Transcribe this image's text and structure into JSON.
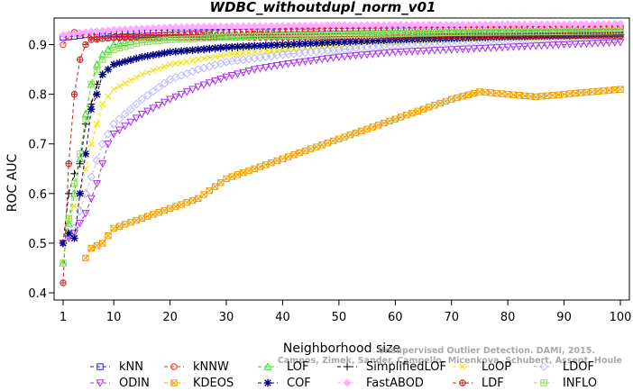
{
  "chart_data": {
    "type": "line",
    "title": "WDBC_withoutdupl_norm_v01",
    "xlabel": "Neighborhood size",
    "ylabel": "ROC AUC",
    "xlim": [
      1,
      100
    ],
    "ylim": [
      0.4,
      0.95
    ],
    "xticks": [
      1,
      10,
      20,
      30,
      40,
      50,
      60,
      70,
      80,
      90,
      100
    ],
    "yticks": [
      0.4,
      0.5,
      0.6,
      0.7,
      0.8,
      0.9
    ],
    "grid": false,
    "legend_position": "bottom",
    "watermark": [
      "Campos, Zimek, Sander, Campello, Micenkova, Schubert, Assent, Houle",
      "Unsupervised Outlier Detection. DAMI, 2015."
    ],
    "series": [
      {
        "name": "kNN",
        "color": "#1a1aff",
        "marker": "square",
        "points": [
          [
            1,
            0.915
          ],
          [
            3,
            0.917
          ],
          [
            5,
            0.92
          ],
          [
            10,
            0.922
          ],
          [
            20,
            0.924
          ],
          [
            30,
            0.925
          ],
          [
            40,
            0.926
          ],
          [
            50,
            0.927
          ],
          [
            60,
            0.928
          ],
          [
            70,
            0.929
          ],
          [
            80,
            0.93
          ],
          [
            90,
            0.931
          ],
          [
            100,
            0.932
          ]
        ]
      },
      {
        "name": "kNNW",
        "color": "#ff2020",
        "marker": "circle",
        "points": [
          [
            1,
            0.9
          ],
          [
            2,
            0.915
          ],
          [
            3,
            0.925
          ],
          [
            5,
            0.92
          ],
          [
            8,
            0.912
          ],
          [
            10,
            0.915
          ],
          [
            20,
            0.92
          ],
          [
            30,
            0.925
          ],
          [
            40,
            0.93
          ],
          [
            50,
            0.932
          ],
          [
            60,
            0.933
          ],
          [
            70,
            0.934
          ],
          [
            80,
            0.935
          ],
          [
            90,
            0.935
          ],
          [
            100,
            0.936
          ]
        ]
      },
      {
        "name": "LOF",
        "color": "#22dd22",
        "marker": "triangle-up",
        "points": [
          [
            1,
            0.46
          ],
          [
            2,
            0.54
          ],
          [
            3,
            0.6
          ],
          [
            4,
            0.67
          ],
          [
            5,
            0.76
          ],
          [
            6,
            0.82
          ],
          [
            7,
            0.86
          ],
          [
            8,
            0.88
          ],
          [
            10,
            0.9
          ],
          [
            15,
            0.91
          ],
          [
            20,
            0.915
          ],
          [
            30,
            0.918
          ],
          [
            40,
            0.92
          ],
          [
            50,
            0.922
          ],
          [
            60,
            0.924
          ],
          [
            70,
            0.926
          ],
          [
            80,
            0.927
          ],
          [
            90,
            0.928
          ],
          [
            100,
            0.93
          ]
        ]
      },
      {
        "name": "SimplifiedLOF",
        "color": "#000000",
        "marker": "plus",
        "points": [
          [
            1,
            0.5
          ],
          [
            2,
            0.6
          ],
          [
            3,
            0.64
          ],
          [
            4,
            0.66
          ],
          [
            5,
            0.74
          ],
          [
            6,
            0.78
          ],
          [
            7,
            0.82
          ],
          [
            8,
            0.84
          ],
          [
            10,
            0.86
          ],
          [
            15,
            0.875
          ],
          [
            20,
            0.885
          ],
          [
            30,
            0.893
          ],
          [
            40,
            0.9
          ],
          [
            50,
            0.905
          ],
          [
            60,
            0.91
          ],
          [
            70,
            0.913
          ],
          [
            80,
            0.916
          ],
          [
            90,
            0.918
          ],
          [
            100,
            0.92
          ]
        ]
      },
      {
        "name": "LoOP",
        "color": "#f0e000",
        "marker": "x",
        "points": [
          [
            1,
            0.5
          ],
          [
            2,
            0.55
          ],
          [
            4,
            0.6
          ],
          [
            6,
            0.7
          ],
          [
            8,
            0.78
          ],
          [
            10,
            0.81
          ],
          [
            15,
            0.84
          ],
          [
            20,
            0.86
          ],
          [
            30,
            0.88
          ],
          [
            40,
            0.89
          ],
          [
            50,
            0.9
          ],
          [
            60,
            0.905
          ],
          [
            70,
            0.91
          ],
          [
            80,
            0.912
          ],
          [
            90,
            0.915
          ],
          [
            100,
            0.918
          ]
        ]
      },
      {
        "name": "LDOF",
        "color": "#b8b8ff",
        "marker": "diamond",
        "points": [
          [
            1,
            0.5
          ],
          [
            3,
            0.53
          ],
          [
            5,
            0.6
          ],
          [
            8,
            0.7
          ],
          [
            10,
            0.74
          ],
          [
            15,
            0.79
          ],
          [
            20,
            0.83
          ],
          [
            25,
            0.85
          ],
          [
            30,
            0.865
          ],
          [
            40,
            0.88
          ],
          [
            50,
            0.89
          ],
          [
            60,
            0.9
          ],
          [
            70,
            0.905
          ],
          [
            80,
            0.91
          ],
          [
            90,
            0.913
          ],
          [
            100,
            0.915
          ]
        ]
      },
      {
        "name": "ODIN",
        "color": "#aa33ee",
        "marker": "triangle-down",
        "points": [
          [
            1,
            0.5
          ],
          [
            3,
            0.52
          ],
          [
            5,
            0.56
          ],
          [
            7,
            0.62
          ],
          [
            9,
            0.7
          ],
          [
            10,
            0.72
          ],
          [
            15,
            0.76
          ],
          [
            20,
            0.79
          ],
          [
            25,
            0.815
          ],
          [
            30,
            0.835
          ],
          [
            35,
            0.85
          ],
          [
            40,
            0.86
          ],
          [
            50,
            0.875
          ],
          [
            60,
            0.885
          ],
          [
            70,
            0.89
          ],
          [
            80,
            0.895
          ],
          [
            90,
            0.9
          ],
          [
            100,
            0.905
          ]
        ]
      },
      {
        "name": "KDEOS",
        "color": "#f0a000",
        "marker": "square-x",
        "points": [
          [
            5,
            0.47
          ],
          [
            6,
            0.49
          ],
          [
            8,
            0.5
          ],
          [
            10,
            0.53
          ],
          [
            15,
            0.55
          ],
          [
            20,
            0.57
          ],
          [
            25,
            0.59
          ],
          [
            30,
            0.63
          ],
          [
            35,
            0.65
          ],
          [
            40,
            0.67
          ],
          [
            45,
            0.69
          ],
          [
            50,
            0.71
          ],
          [
            55,
            0.73
          ],
          [
            60,
            0.75
          ],
          [
            65,
            0.77
          ],
          [
            70,
            0.79
          ],
          [
            75,
            0.805
          ],
          [
            80,
            0.8
          ],
          [
            85,
            0.795
          ],
          [
            90,
            0.8
          ],
          [
            95,
            0.805
          ],
          [
            100,
            0.81
          ]
        ]
      },
      {
        "name": "COF",
        "color": "#000080",
        "marker": "asterisk",
        "points": [
          [
            1,
            0.5
          ],
          [
            2,
            0.52
          ],
          [
            3,
            0.51
          ],
          [
            4,
            0.6
          ],
          [
            5,
            0.68
          ],
          [
            6,
            0.77
          ],
          [
            7,
            0.8
          ],
          [
            8,
            0.84
          ],
          [
            9,
            0.85
          ],
          [
            10,
            0.86
          ],
          [
            15,
            0.875
          ],
          [
            20,
            0.885
          ],
          [
            30,
            0.895
          ],
          [
            40,
            0.9
          ],
          [
            50,
            0.905
          ],
          [
            60,
            0.91
          ],
          [
            70,
            0.913
          ],
          [
            80,
            0.916
          ],
          [
            90,
            0.918
          ],
          [
            100,
            0.92
          ]
        ]
      },
      {
        "name": "FastABOD",
        "color": "#ffaaff",
        "marker": "diamond-filled",
        "points": [
          [
            1,
            0.92
          ],
          [
            5,
            0.925
          ],
          [
            10,
            0.93
          ],
          [
            20,
            0.935
          ],
          [
            30,
            0.937
          ],
          [
            40,
            0.938
          ],
          [
            50,
            0.939
          ],
          [
            60,
            0.94
          ],
          [
            70,
            0.94
          ],
          [
            80,
            0.941
          ],
          [
            90,
            0.941
          ],
          [
            100,
            0.942
          ]
        ]
      },
      {
        "name": "LDF",
        "color": "#bb2222",
        "marker": "circle-plus",
        "points": [
          [
            1,
            0.42
          ],
          [
            2,
            0.66
          ],
          [
            3,
            0.8
          ],
          [
            4,
            0.87
          ],
          [
            5,
            0.9
          ],
          [
            6,
            0.91
          ],
          [
            8,
            0.912
          ],
          [
            10,
            0.914
          ],
          [
            20,
            0.915
          ],
          [
            30,
            0.915
          ],
          [
            40,
            0.915
          ],
          [
            50,
            0.916
          ],
          [
            60,
            0.916
          ],
          [
            70,
            0.917
          ],
          [
            80,
            0.917
          ],
          [
            90,
            0.918
          ],
          [
            100,
            0.918
          ]
        ]
      },
      {
        "name": "INFLO",
        "color": "#90dd60",
        "marker": "square-cross",
        "points": [
          [
            1,
            0.46
          ],
          [
            2,
            0.55
          ],
          [
            3,
            0.62
          ],
          [
            4,
            0.68
          ],
          [
            5,
            0.75
          ],
          [
            6,
            0.82
          ],
          [
            7,
            0.85
          ],
          [
            8,
            0.87
          ],
          [
            10,
            0.89
          ],
          [
            15,
            0.905
          ],
          [
            20,
            0.91
          ],
          [
            30,
            0.915
          ],
          [
            40,
            0.918
          ],
          [
            50,
            0.92
          ],
          [
            60,
            0.922
          ],
          [
            70,
            0.924
          ],
          [
            80,
            0.925
          ],
          [
            90,
            0.926
          ],
          [
            100,
            0.927
          ]
        ]
      }
    ]
  }
}
